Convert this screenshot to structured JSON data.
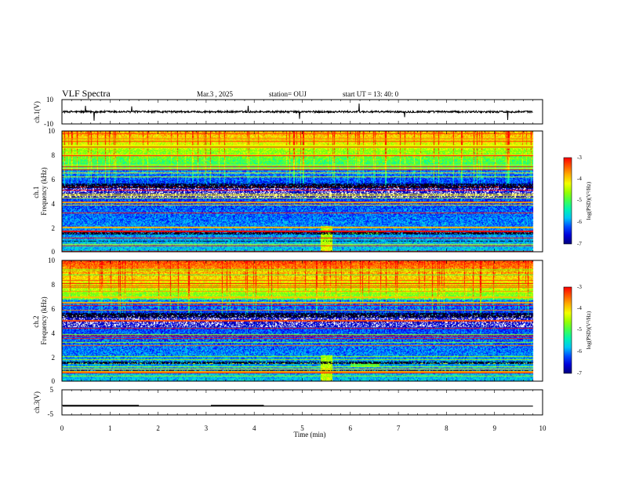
{
  "header": {
    "title": "VLF Spectra",
    "date": "Mar.3 , 2025",
    "station": "station= OUJ",
    "start": "start UT = 13: 40: 0"
  },
  "colors": {
    "spectrogram_cmap": [
      "#00007f",
      "#0000ff",
      "#00bfff",
      "#00ffa0",
      "#7fff00",
      "#ffff00",
      "#ff7f00",
      "#ff0000",
      "#ffffff"
    ],
    "trace": "#000000"
  },
  "chart_data": [
    {
      "type": "line",
      "name": "ch1-waveform",
      "ylabel": "ch.1(V)",
      "ylim": [
        -10,
        10
      ],
      "yticks": [
        "10",
        "-10"
      ],
      "baseline": 0,
      "x_range": [
        0,
        9.8
      ]
    },
    {
      "type": "heatmap",
      "name": "ch1-spectrogram",
      "ylabel": "ch.1\nFrequency (kHz)",
      "ylim": [
        0,
        10
      ],
      "yticks": [
        "10",
        "8",
        "6",
        "4",
        "2",
        "0"
      ],
      "x_range": [
        0,
        9.8
      ],
      "colorbar": {
        "label": "log(PSD)(V²/Hz)",
        "range": [
          -7,
          -3
        ],
        "ticks": [
          "-3",
          "-4",
          "-5",
          "-6",
          "-7"
        ]
      }
    },
    {
      "type": "heatmap",
      "name": "ch2-spectrogram",
      "ylabel": "ch.2\nFrequency (kHz)",
      "ylim": [
        0,
        10
      ],
      "yticks": [
        "10",
        "8",
        "6",
        "4",
        "2",
        "0"
      ],
      "x_range": [
        0,
        9.8
      ],
      "colorbar": {
        "label": "log(PSD)(V²/Hz)",
        "range": [
          -7,
          -3
        ],
        "ticks": [
          "-3",
          "-4",
          "-5",
          "-6",
          "-7"
        ]
      }
    },
    {
      "type": "line",
      "name": "ch3-signal",
      "ylabel": "ch.3(V)",
      "ylim": [
        -5,
        5
      ],
      "yticks": [
        "5",
        "-5"
      ],
      "baseline": -1.5,
      "segments_high": [
        [
          0.0,
          1.6
        ],
        [
          3.1,
          4.2
        ]
      ],
      "x_range": [
        0,
        9.8
      ]
    }
  ],
  "xaxis": {
    "label": "Time (min)",
    "range": [
      0,
      10
    ],
    "ticks": [
      "0",
      "1",
      "2",
      "3",
      "4",
      "5",
      "6",
      "7",
      "8",
      "9",
      "10"
    ]
  }
}
